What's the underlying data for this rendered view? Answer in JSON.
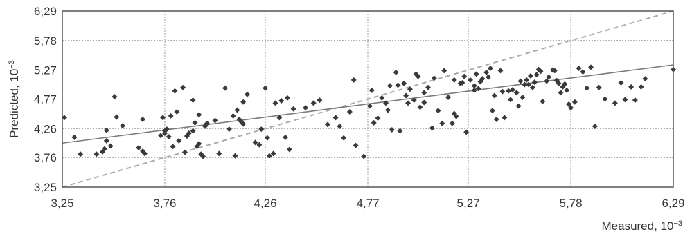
{
  "chart_data": {
    "type": "scatter",
    "xlabel": "Measured, 10",
    "xlabel_exponent": "−3",
    "ylabel": "Predicted, 10",
    "ylabel_exponent": "−3",
    "xlim": [
      3.25,
      6.29
    ],
    "ylim": [
      3.25,
      6.29
    ],
    "x_ticks": [
      "3,25",
      "3,76",
      "4,26",
      "4,77",
      "5,27",
      "5,78",
      "6,29"
    ],
    "y_ticks": [
      "3,25",
      "3,76",
      "4,26",
      "4,77",
      "5,27",
      "5,78",
      "6,29"
    ],
    "x_tick_values": [
      3.25,
      3.76,
      4.26,
      4.77,
      5.27,
      5.78,
      6.29
    ],
    "y_tick_values": [
      3.25,
      3.76,
      4.26,
      4.77,
      5.27,
      5.78,
      6.29
    ],
    "grid": true,
    "legend": "none",
    "points_color": "#3a3a3a",
    "fit_line": {
      "x": [
        3.25,
        6.29
      ],
      "y": [
        4.01,
        5.36
      ],
      "color": "#7a7a7a",
      "style": "solid"
    },
    "identity_line": {
      "x": [
        3.25,
        6.29
      ],
      "y": [
        3.25,
        6.29
      ],
      "color": "#aaaaaa",
      "style": "dashed"
    },
    "points": [
      [
        3.26,
        4.45
      ],
      [
        3.31,
        4.11
      ],
      [
        3.34,
        3.82
      ],
      [
        3.42,
        3.82
      ],
      [
        3.45,
        3.86
      ],
      [
        3.46,
        3.91
      ],
      [
        3.47,
        4.05
      ],
      [
        3.47,
        4.23
      ],
      [
        3.49,
        3.96
      ],
      [
        3.51,
        4.81
      ],
      [
        3.52,
        4.46
      ],
      [
        3.55,
        4.31
      ],
      [
        3.63,
        3.93
      ],
      [
        3.65,
        4.42
      ],
      [
        3.65,
        3.87
      ],
      [
        3.66,
        3.83
      ],
      [
        3.74,
        4.14
      ],
      [
        3.75,
        4.45
      ],
      [
        3.76,
        4.18
      ],
      [
        3.76,
        4.22
      ],
      [
        3.77,
        4.25
      ],
      [
        3.78,
        4.12
      ],
      [
        3.79,
        4.48
      ],
      [
        3.8,
        3.95
      ],
      [
        3.81,
        4.91
      ],
      [
        3.82,
        4.55
      ],
      [
        3.83,
        4.05
      ],
      [
        3.85,
        4.97
      ],
      [
        3.86,
        3.85
      ],
      [
        3.87,
        4.13
      ],
      [
        3.88,
        4.18
      ],
      [
        3.9,
        4.75
      ],
      [
        3.9,
        4.22
      ],
      [
        3.91,
        4.36
      ],
      [
        3.92,
        3.95
      ],
      [
        3.93,
        4.5
      ],
      [
        3.93,
        4.0
      ],
      [
        3.94,
        3.82
      ],
      [
        3.95,
        3.78
      ],
      [
        3.96,
        4.3
      ],
      [
        3.97,
        4.35
      ],
      [
        4.01,
        4.4
      ],
      [
        4.03,
        3.83
      ],
      [
        4.06,
        4.96
      ],
      [
        4.08,
        4.25
      ],
      [
        4.1,
        4.48
      ],
      [
        4.11,
        3.79
      ],
      [
        4.12,
        4.58
      ],
      [
        4.13,
        4.42
      ],
      [
        4.14,
        4.38
      ],
      [
        4.15,
        4.34
      ],
      [
        4.15,
        4.72
      ],
      [
        4.17,
        4.85
      ],
      [
        4.21,
        4.02
      ],
      [
        4.23,
        3.98
      ],
      [
        4.24,
        4.25
      ],
      [
        4.26,
        4.96
      ],
      [
        4.27,
        4.1
      ],
      [
        4.28,
        3.79
      ],
      [
        4.3,
        3.83
      ],
      [
        4.31,
        4.7
      ],
      [
        4.33,
        4.45
      ],
      [
        4.34,
        4.74
      ],
      [
        4.36,
        4.11
      ],
      [
        4.37,
        4.79
      ],
      [
        4.38,
        3.9
      ],
      [
        4.4,
        4.6
      ],
      [
        4.46,
        4.62
      ],
      [
        4.5,
        4.7
      ],
      [
        4.53,
        4.75
      ],
      [
        4.57,
        4.33
      ],
      [
        4.61,
        4.45
      ],
      [
        4.63,
        4.3
      ],
      [
        4.65,
        4.1
      ],
      [
        4.68,
        4.55
      ],
      [
        4.7,
        5.1
      ],
      [
        4.71,
        3.97
      ],
      [
        4.75,
        3.78
      ],
      [
        4.78,
        4.65
      ],
      [
        4.79,
        4.92
      ],
      [
        4.8,
        4.36
      ],
      [
        4.82,
        4.44
      ],
      [
        4.84,
        4.79
      ],
      [
        4.86,
        4.7
      ],
      [
        4.87,
        4.58
      ],
      [
        4.88,
        5.0
      ],
      [
        4.89,
        4.24
      ],
      [
        4.91,
        5.23
      ],
      [
        4.92,
        5.01
      ],
      [
        4.93,
        4.22
      ],
      [
        4.95,
        5.04
      ],
      [
        4.96,
        4.83
      ],
      [
        4.97,
        4.7
      ],
      [
        4.98,
        4.94
      ],
      [
        5.0,
        4.75
      ],
      [
        5.01,
        5.2
      ],
      [
        5.02,
        5.16
      ],
      [
        5.03,
        4.63
      ],
      [
        5.05,
        4.88
      ],
      [
        5.05,
        4.71
      ],
      [
        5.07,
        4.97
      ],
      [
        5.09,
        4.27
      ],
      [
        5.1,
        5.13
      ],
      [
        5.12,
        4.57
      ],
      [
        5.14,
        4.35
      ],
      [
        5.15,
        5.26
      ],
      [
        5.17,
        4.8
      ],
      [
        5.19,
        4.35
      ],
      [
        5.2,
        5.1
      ],
      [
        5.2,
        4.52
      ],
      [
        5.21,
        4.47
      ],
      [
        5.23,
        5.04
      ],
      [
        5.24,
        5.05
      ],
      [
        5.25,
        5.16
      ],
      [
        5.26,
        4.2
      ],
      [
        5.28,
        5.1
      ],
      [
        5.3,
        5.0
      ],
      [
        5.3,
        4.92
      ],
      [
        5.31,
        5.2
      ],
      [
        5.32,
        4.95
      ],
      [
        5.33,
        5.07
      ],
      [
        5.34,
        5.12
      ],
      [
        5.36,
        5.23
      ],
      [
        5.37,
        5.15
      ],
      [
        5.38,
        5.3
      ],
      [
        5.39,
        4.57
      ],
      [
        5.4,
        4.83
      ],
      [
        5.41,
        4.42
      ],
      [
        5.43,
        5.26
      ],
      [
        5.44,
        4.9
      ],
      [
        5.45,
        4.45
      ],
      [
        5.47,
        4.91
      ],
      [
        5.48,
        4.76
      ],
      [
        5.49,
        4.93
      ],
      [
        5.51,
        4.88
      ],
      [
        5.52,
        4.65
      ],
      [
        5.53,
        5.08
      ],
      [
        5.54,
        4.8
      ],
      [
        5.55,
        5.02
      ],
      [
        5.56,
        5.1
      ],
      [
        5.57,
        5.02
      ],
      [
        5.58,
        5.17
      ],
      [
        5.59,
        4.97
      ],
      [
        5.6,
        5.06
      ],
      [
        5.61,
        5.19
      ],
      [
        5.62,
        5.28
      ],
      [
        5.63,
        5.25
      ],
      [
        5.64,
        4.73
      ],
      [
        5.66,
        5.08
      ],
      [
        5.67,
        5.15
      ],
      [
        5.69,
        5.27
      ],
      [
        5.7,
        5.26
      ],
      [
        5.71,
        5.09
      ],
      [
        5.72,
        5.04
      ],
      [
        5.73,
        4.88
      ],
      [
        5.74,
        4.98
      ],
      [
        5.75,
        5.03
      ],
      [
        5.76,
        4.92
      ],
      [
        5.77,
        4.68
      ],
      [
        5.78,
        4.62
      ],
      [
        5.8,
        4.72
      ],
      [
        5.82,
        5.3
      ],
      [
        5.84,
        5.24
      ],
      [
        5.86,
        4.96
      ],
      [
        5.88,
        5.32
      ],
      [
        5.9,
        4.3
      ],
      [
        5.92,
        4.97
      ],
      [
        5.95,
        4.77
      ],
      [
        6.0,
        4.7
      ],
      [
        6.03,
        5.05
      ],
      [
        6.05,
        4.76
      ],
      [
        6.08,
        4.98
      ],
      [
        6.1,
        4.75
      ],
      [
        6.13,
        4.98
      ],
      [
        6.15,
        5.12
      ],
      [
        6.29,
        5.28
      ]
    ]
  }
}
